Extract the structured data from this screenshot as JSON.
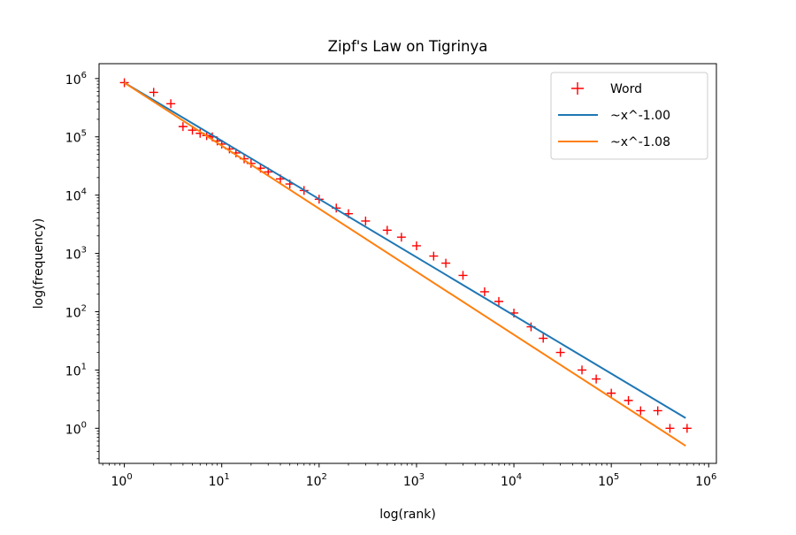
{
  "chart_data": {
    "type": "scatter",
    "title": "Zipf's Law on Tigrinya",
    "xlabel": "log(rank)",
    "ylabel": "log(frequency)",
    "x_scale": "log",
    "y_scale": "log",
    "xlim": [
      0.55,
      1200000
    ],
    "ylim": [
      0.25,
      1800000
    ],
    "x_ticks": [
      {
        "value": 1,
        "base": "10",
        "exp": "0"
      },
      {
        "value": 10,
        "base": "10",
        "exp": "1"
      },
      {
        "value": 100,
        "base": "10",
        "exp": "2"
      },
      {
        "value": 1000,
        "base": "10",
        "exp": "3"
      },
      {
        "value": 10000,
        "base": "10",
        "exp": "4"
      },
      {
        "value": 100000,
        "base": "10",
        "exp": "5"
      },
      {
        "value": 1000000,
        "base": "10",
        "exp": "6"
      }
    ],
    "y_ticks": [
      {
        "value": 1,
        "base": "10",
        "exp": "0"
      },
      {
        "value": 10,
        "base": "10",
        "exp": "1"
      },
      {
        "value": 100,
        "base": "10",
        "exp": "2"
      },
      {
        "value": 1000,
        "base": "10",
        "exp": "3"
      },
      {
        "value": 10000,
        "base": "10",
        "exp": "4"
      },
      {
        "value": 100000,
        "base": "10",
        "exp": "5"
      },
      {
        "value": 1000000,
        "base": "10",
        "exp": "6"
      }
    ],
    "grid": false,
    "legend_position": "top-right",
    "series": [
      {
        "name": "Word",
        "kind": "scatter",
        "marker": "+",
        "color": "#ff0000",
        "points": [
          [
            1,
            850000
          ],
          [
            2,
            580000
          ],
          [
            3,
            370000
          ],
          [
            4,
            150000
          ],
          [
            5,
            130000
          ],
          [
            6,
            115000
          ],
          [
            7,
            105000
          ],
          [
            8,
            100000
          ],
          [
            9,
            85000
          ],
          [
            10,
            75000
          ],
          [
            12,
            62000
          ],
          [
            14,
            53000
          ],
          [
            17,
            42000
          ],
          [
            20,
            35000
          ],
          [
            25,
            29000
          ],
          [
            30,
            25000
          ],
          [
            40,
            19000
          ],
          [
            50,
            15500
          ],
          [
            70,
            12000
          ],
          [
            100,
            8500
          ],
          [
            150,
            6000
          ],
          [
            200,
            4800
          ],
          [
            300,
            3600
          ],
          [
            500,
            2500
          ],
          [
            700,
            1900
          ],
          [
            1000,
            1350
          ],
          [
            1500,
            900
          ],
          [
            2000,
            680
          ],
          [
            3000,
            420
          ],
          [
            5000,
            220
          ],
          [
            7000,
            150
          ],
          [
            10000,
            95
          ],
          [
            15000,
            55
          ],
          [
            20000,
            35
          ],
          [
            30000,
            20
          ],
          [
            50000,
            10
          ],
          [
            70000,
            7
          ],
          [
            100000,
            4
          ],
          [
            150000,
            3
          ],
          [
            200000,
            2
          ],
          [
            300000,
            2
          ],
          [
            400000,
            1
          ],
          [
            600000,
            1
          ]
        ]
      },
      {
        "name": "~x^-1.00",
        "kind": "line",
        "color": "#1f77b4",
        "points": [
          [
            1,
            850000
          ],
          [
            580000,
            1.5
          ]
        ]
      },
      {
        "name": "~x^-1.08",
        "kind": "line",
        "color": "#ff7f0e",
        "points": [
          [
            1,
            850000
          ],
          [
            580000,
            0.5
          ]
        ]
      }
    ]
  }
}
